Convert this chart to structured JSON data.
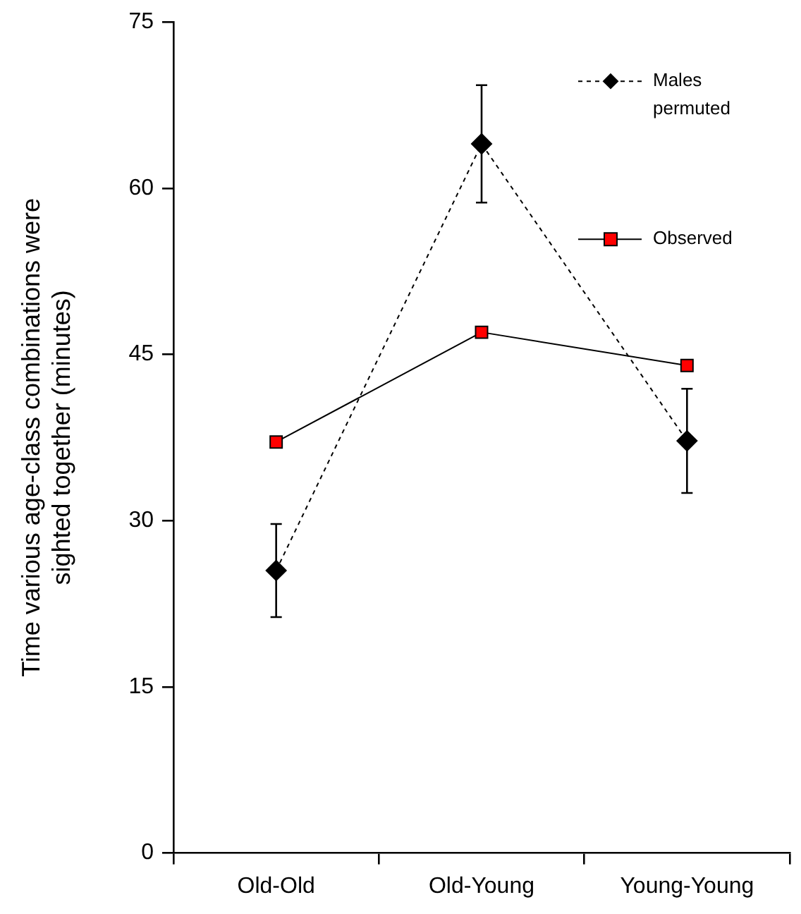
{
  "chart_data": {
    "type": "line",
    "ylabel": "Time various age-class combinations were sighted together (minutes)",
    "categories": [
      "Old-Old",
      "Old-Young",
      "Young-Young"
    ],
    "series": [
      {
        "name": "Males permuted",
        "color": "#000000",
        "marker": "diamond",
        "line_style": "dashed",
        "values": [
          25.5,
          64.0,
          37.2
        ],
        "errors": [
          4.2,
          5.3,
          4.7
        ]
      },
      {
        "name": "Observed",
        "color": "#ff0000",
        "marker": "square",
        "line_style": "solid",
        "values": [
          37.1,
          47.0,
          44.0
        ]
      }
    ],
    "ylim": [
      0,
      75
    ],
    "yticks": [
      0,
      15,
      30,
      45,
      60,
      75
    ],
    "grid": false,
    "legend": "top right"
  }
}
